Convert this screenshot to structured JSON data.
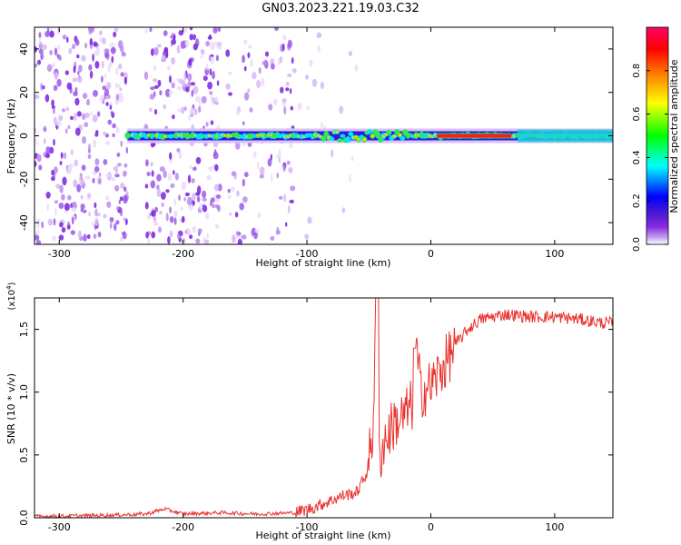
{
  "title": "GN03.2023.221.19.03.C32",
  "chart_data": [
    {
      "type": "heatmap",
      "xlabel": "Height of straight line (km)",
      "ylabel": "Frequency (Hz)",
      "xlim": [
        -320,
        147
      ],
      "ylim": [
        -50,
        50
      ],
      "x_ticks": [
        -300,
        -200,
        -100,
        0,
        100
      ],
      "y_ticks": [
        -40,
        -20,
        0,
        20,
        40
      ],
      "colorbar": {
        "label": "Normalized spectral amplitude",
        "range": [
          0,
          1
        ],
        "ticks": [
          "0.0",
          "0.2",
          "0.4",
          "0.6",
          "0.8"
        ],
        "colors": [
          "#ffffff",
          "#c8a4f2",
          "#8a2be2",
          "#4b1bd1",
          "#0000ff",
          "#00ffff",
          "#00ff00",
          "#ffff00",
          "#ff8000",
          "#ff0000",
          "#ff0066"
        ]
      },
      "noise_regions": [
        {
          "x": [
            -320,
            -245
          ],
          "density": "high"
        },
        {
          "x": [
            -230,
            -170
          ],
          "density": "high"
        },
        {
          "x": [
            -165,
            -110
          ],
          "density": "medium"
        },
        {
          "x": [
            -110,
            -60
          ],
          "density": "sparse"
        }
      ],
      "ridge": {
        "x_start": -245,
        "x_end": 147,
        "center_hz": 0,
        "strong_from_x": 5,
        "strong_to_x": 65
      }
    },
    {
      "type": "line",
      "xlabel": "Height of straight line (km)",
      "ylabel": "SNR (10 * v/v)",
      "y_multiplier": "(x10",
      "y_multiplier_exp": "4",
      "y_multiplier_close": ")",
      "xlim": [
        -320,
        147
      ],
      "ylim": [
        0,
        1.75
      ],
      "x_ticks": [
        -300,
        -200,
        -100,
        0,
        100
      ],
      "y_ticks": [
        "0.0",
        "0.5",
        "1.0",
        "1.5"
      ],
      "color": "#e8342f",
      "series": [
        {
          "x": [
            -320,
            -260,
            -230,
            -215,
            -200,
            -170,
            -140,
            -110,
            -95,
            -80,
            -70,
            -60,
            -52,
            -47,
            -44,
            -42,
            -38,
            -30,
            -22,
            -15,
            -12,
            -8,
            0,
            10,
            20,
            30,
            40,
            60,
            80,
            100,
            120,
            140,
            147
          ],
          "y": [
            0.01,
            0.02,
            0.03,
            0.07,
            0.03,
            0.04,
            0.03,
            0.04,
            0.08,
            0.14,
            0.18,
            0.2,
            0.35,
            0.65,
            1.75,
            0.45,
            0.6,
            0.75,
            0.8,
            0.9,
            1.35,
            1.0,
            1.05,
            1.2,
            1.38,
            1.5,
            1.58,
            1.62,
            1.6,
            1.6,
            1.58,
            1.55,
            1.55
          ]
        }
      ]
    }
  ]
}
